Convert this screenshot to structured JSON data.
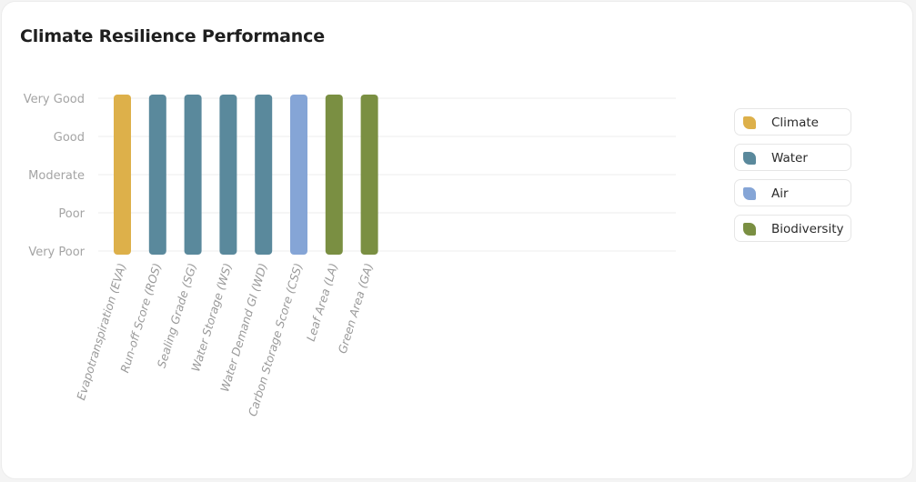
{
  "header": {
    "title": "Climate Resilience Performance"
  },
  "chart_data": {
    "type": "bar",
    "title": "Climate Resilience Performance",
    "categories": [
      "Evapotranspiration (EVA)",
      "Run-off Score (ROS)",
      "Sealing Grade (SG)",
      "Water Storage (WS)",
      "Water Demand GI (WD)",
      "Carbon Storage Score (CSS)",
      "Leaf Area (LA)",
      "Green Area (GA)"
    ],
    "y_tick_labels": [
      "Very Poor",
      "Poor",
      "Moderate",
      "Good",
      "Very Good"
    ],
    "values": [
      "Very Good",
      "Very Good",
      "Very Good",
      "Very Good",
      "Very Good",
      "Very Good",
      "Very Good",
      "Very Good"
    ],
    "bar_groups": [
      "Climate",
      "Water",
      "Water",
      "Water",
      "Water",
      "Air",
      "Biodiversity",
      "Biodiversity"
    ],
    "grid": true,
    "legend_position": "right"
  },
  "legend": {
    "items": [
      {
        "label": "Climate",
        "color": "#ddb04a"
      },
      {
        "label": "Water",
        "color": "#5a899c"
      },
      {
        "label": "Air",
        "color": "#85a5d6"
      },
      {
        "label": "Biodiversity",
        "color": "#7a8f42"
      }
    ]
  }
}
